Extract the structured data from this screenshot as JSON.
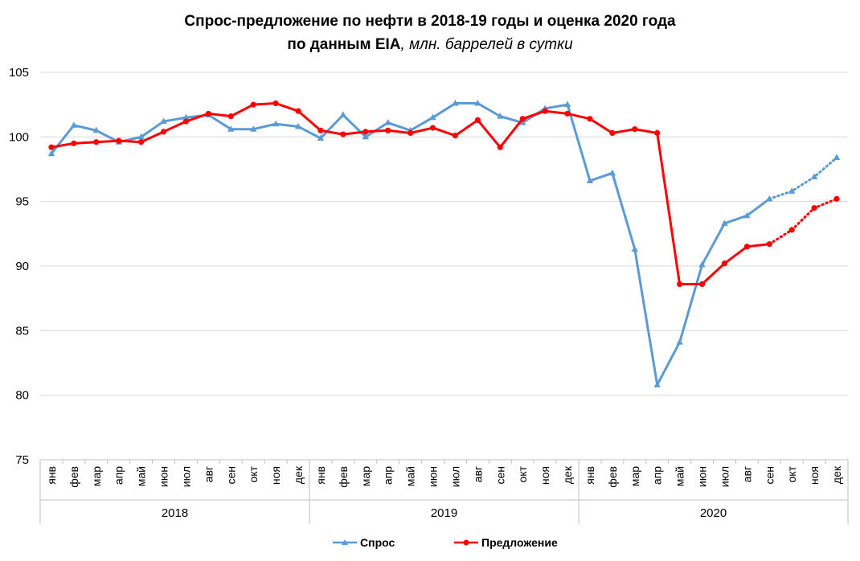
{
  "title": {
    "line1": "Спрос-предложение по нефти в 2018-19 годы и оценка 2020 года",
    "line2_bold": "по данным EIA",
    "line2_italic": ", млн. баррелей в сутки"
  },
  "colors": {
    "demand": "#5B9BD5",
    "supply": "#FF0000",
    "grid": "#D9D9D9",
    "axis": "#BFBFBF"
  },
  "chart_data": {
    "type": "line",
    "title": "Спрос-предложение по нефти в 2018-19 годы и оценка 2020 года по данным EIA, млн. баррелей в сутки",
    "ylim": [
      75,
      105
    ],
    "yticks": [
      75,
      80,
      85,
      90,
      95,
      100,
      105
    ],
    "grid": true,
    "legend_position": "bottom",
    "years": [
      {
        "label": "2018",
        "months": 12
      },
      {
        "label": "2019",
        "months": 12
      },
      {
        "label": "2020",
        "months": 12
      }
    ],
    "categories": [
      "янв",
      "фев",
      "мар",
      "апр",
      "май",
      "июн",
      "июл",
      "авг",
      "сен",
      "окт",
      "ноя",
      "дек",
      "янв",
      "фев",
      "мар",
      "апр",
      "май",
      "июн",
      "июл",
      "авг",
      "сен",
      "окт",
      "ноя",
      "дек",
      "янв",
      "фев",
      "мар",
      "апр",
      "май",
      "июн",
      "июл",
      "авг",
      "сен",
      "окт",
      "ноя",
      "дек"
    ],
    "forecast_from_index": 32,
    "series": [
      {
        "name": "Спрос",
        "color": "#5B9BD5",
        "marker": "triangle",
        "values": [
          98.7,
          100.9,
          100.5,
          99.6,
          100.0,
          101.2,
          101.5,
          101.7,
          100.6,
          100.6,
          101.0,
          100.8,
          99.9,
          101.7,
          100.0,
          101.1,
          100.5,
          101.5,
          102.6,
          102.6,
          101.6,
          101.1,
          102.2,
          102.5,
          96.6,
          97.2,
          91.3,
          80.8,
          84.1,
          90.1,
          93.3,
          93.9,
          95.2,
          95.8,
          96.9,
          98.4
        ]
      },
      {
        "name": "Предложение",
        "color": "#FF0000",
        "marker": "circle",
        "values": [
          99.2,
          99.5,
          99.6,
          99.7,
          99.6,
          100.4,
          101.2,
          101.8,
          101.6,
          102.5,
          102.6,
          102.0,
          100.5,
          100.2,
          100.4,
          100.5,
          100.3,
          100.7,
          100.1,
          101.3,
          99.2,
          101.4,
          102.0,
          101.8,
          101.4,
          100.3,
          100.6,
          100.3,
          88.6,
          88.6,
          90.2,
          91.5,
          91.7,
          92.8,
          94.5,
          95.2
        ]
      }
    ]
  }
}
